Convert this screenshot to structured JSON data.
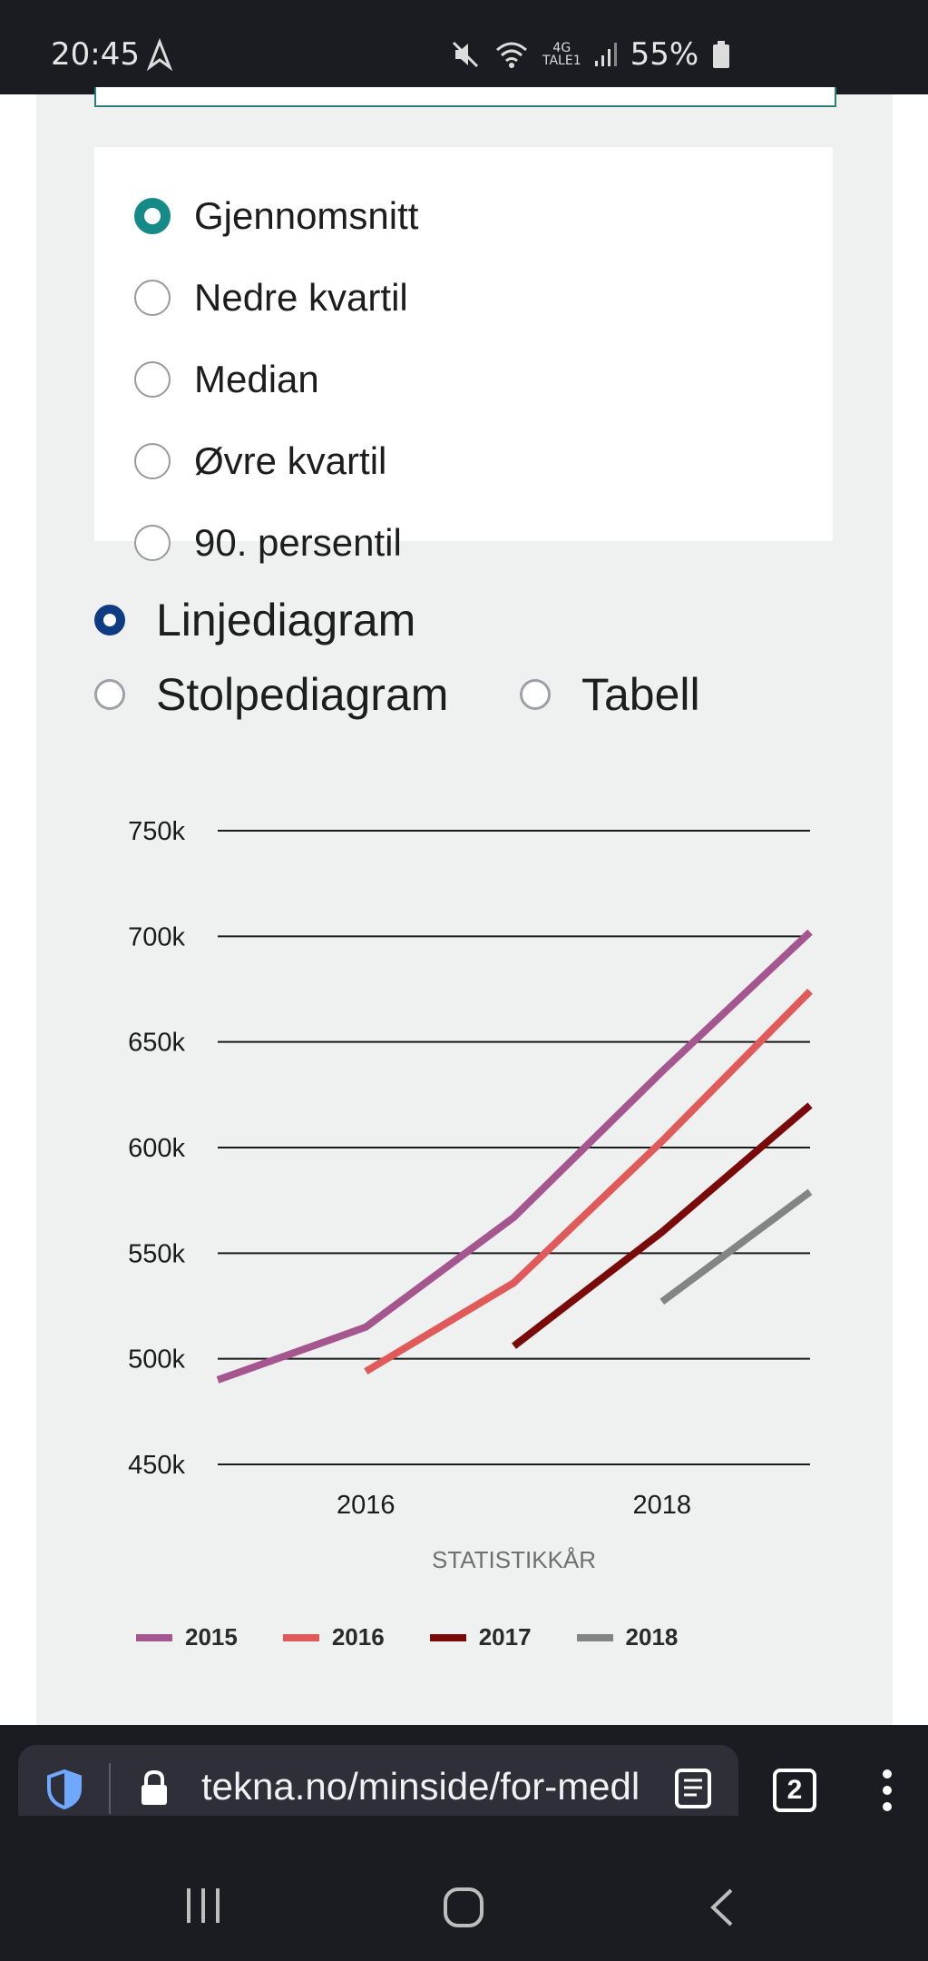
{
  "status_bar": {
    "time": "20:45",
    "network_top": "4G",
    "network_bottom": "TALE1",
    "battery": "55%"
  },
  "measure_options": [
    {
      "label": "Gjennomsnitt",
      "selected": true
    },
    {
      "label": "Nedre kvartil",
      "selected": false
    },
    {
      "label": "Median",
      "selected": false
    },
    {
      "label": "Øvre kvartil",
      "selected": false
    },
    {
      "label": "90. persentil",
      "selected": false
    }
  ],
  "chart_types": [
    {
      "label": "Linjediagram",
      "selected": true
    },
    {
      "label": "Stolpediagram",
      "selected": false
    },
    {
      "label": "Tabell",
      "selected": false
    }
  ],
  "chart_data": {
    "type": "line",
    "xlabel": "STATISTIKKÅR",
    "ylabel": "",
    "x_ticks": [
      2016,
      2018
    ],
    "y_ticks": [
      450000,
      500000,
      550000,
      600000,
      650000,
      700000,
      750000
    ],
    "y_tick_labels": [
      "450k",
      "500k",
      "550k",
      "600k",
      "650k",
      "700k",
      "750k"
    ],
    "xlim": [
      2015,
      2019
    ],
    "ylim": [
      450000,
      750000
    ],
    "grid": true,
    "legend_position": "bottom",
    "series": [
      {
        "name": "2015",
        "color": "#a5568f",
        "points": [
          [
            2015,
            490000
          ],
          [
            2016,
            515000
          ],
          [
            2017,
            567000
          ],
          [
            2018,
            636000
          ],
          [
            2019,
            702000
          ]
        ]
      },
      {
        "name": "2016",
        "color": "#e05a5a",
        "points": [
          [
            2016,
            494000
          ],
          [
            2017,
            536000
          ],
          [
            2018,
            603000
          ],
          [
            2019,
            674000
          ]
        ]
      },
      {
        "name": "2017",
        "color": "#7a0a0a",
        "points": [
          [
            2017,
            506000
          ],
          [
            2018,
            560000
          ],
          [
            2019,
            620000
          ]
        ]
      },
      {
        "name": "2018",
        "color": "#848484",
        "points": [
          [
            2018,
            527000
          ],
          [
            2019,
            579000
          ]
        ]
      }
    ]
  },
  "browser": {
    "url": "tekna.no/minside/for-medl",
    "tab_count": "2"
  }
}
